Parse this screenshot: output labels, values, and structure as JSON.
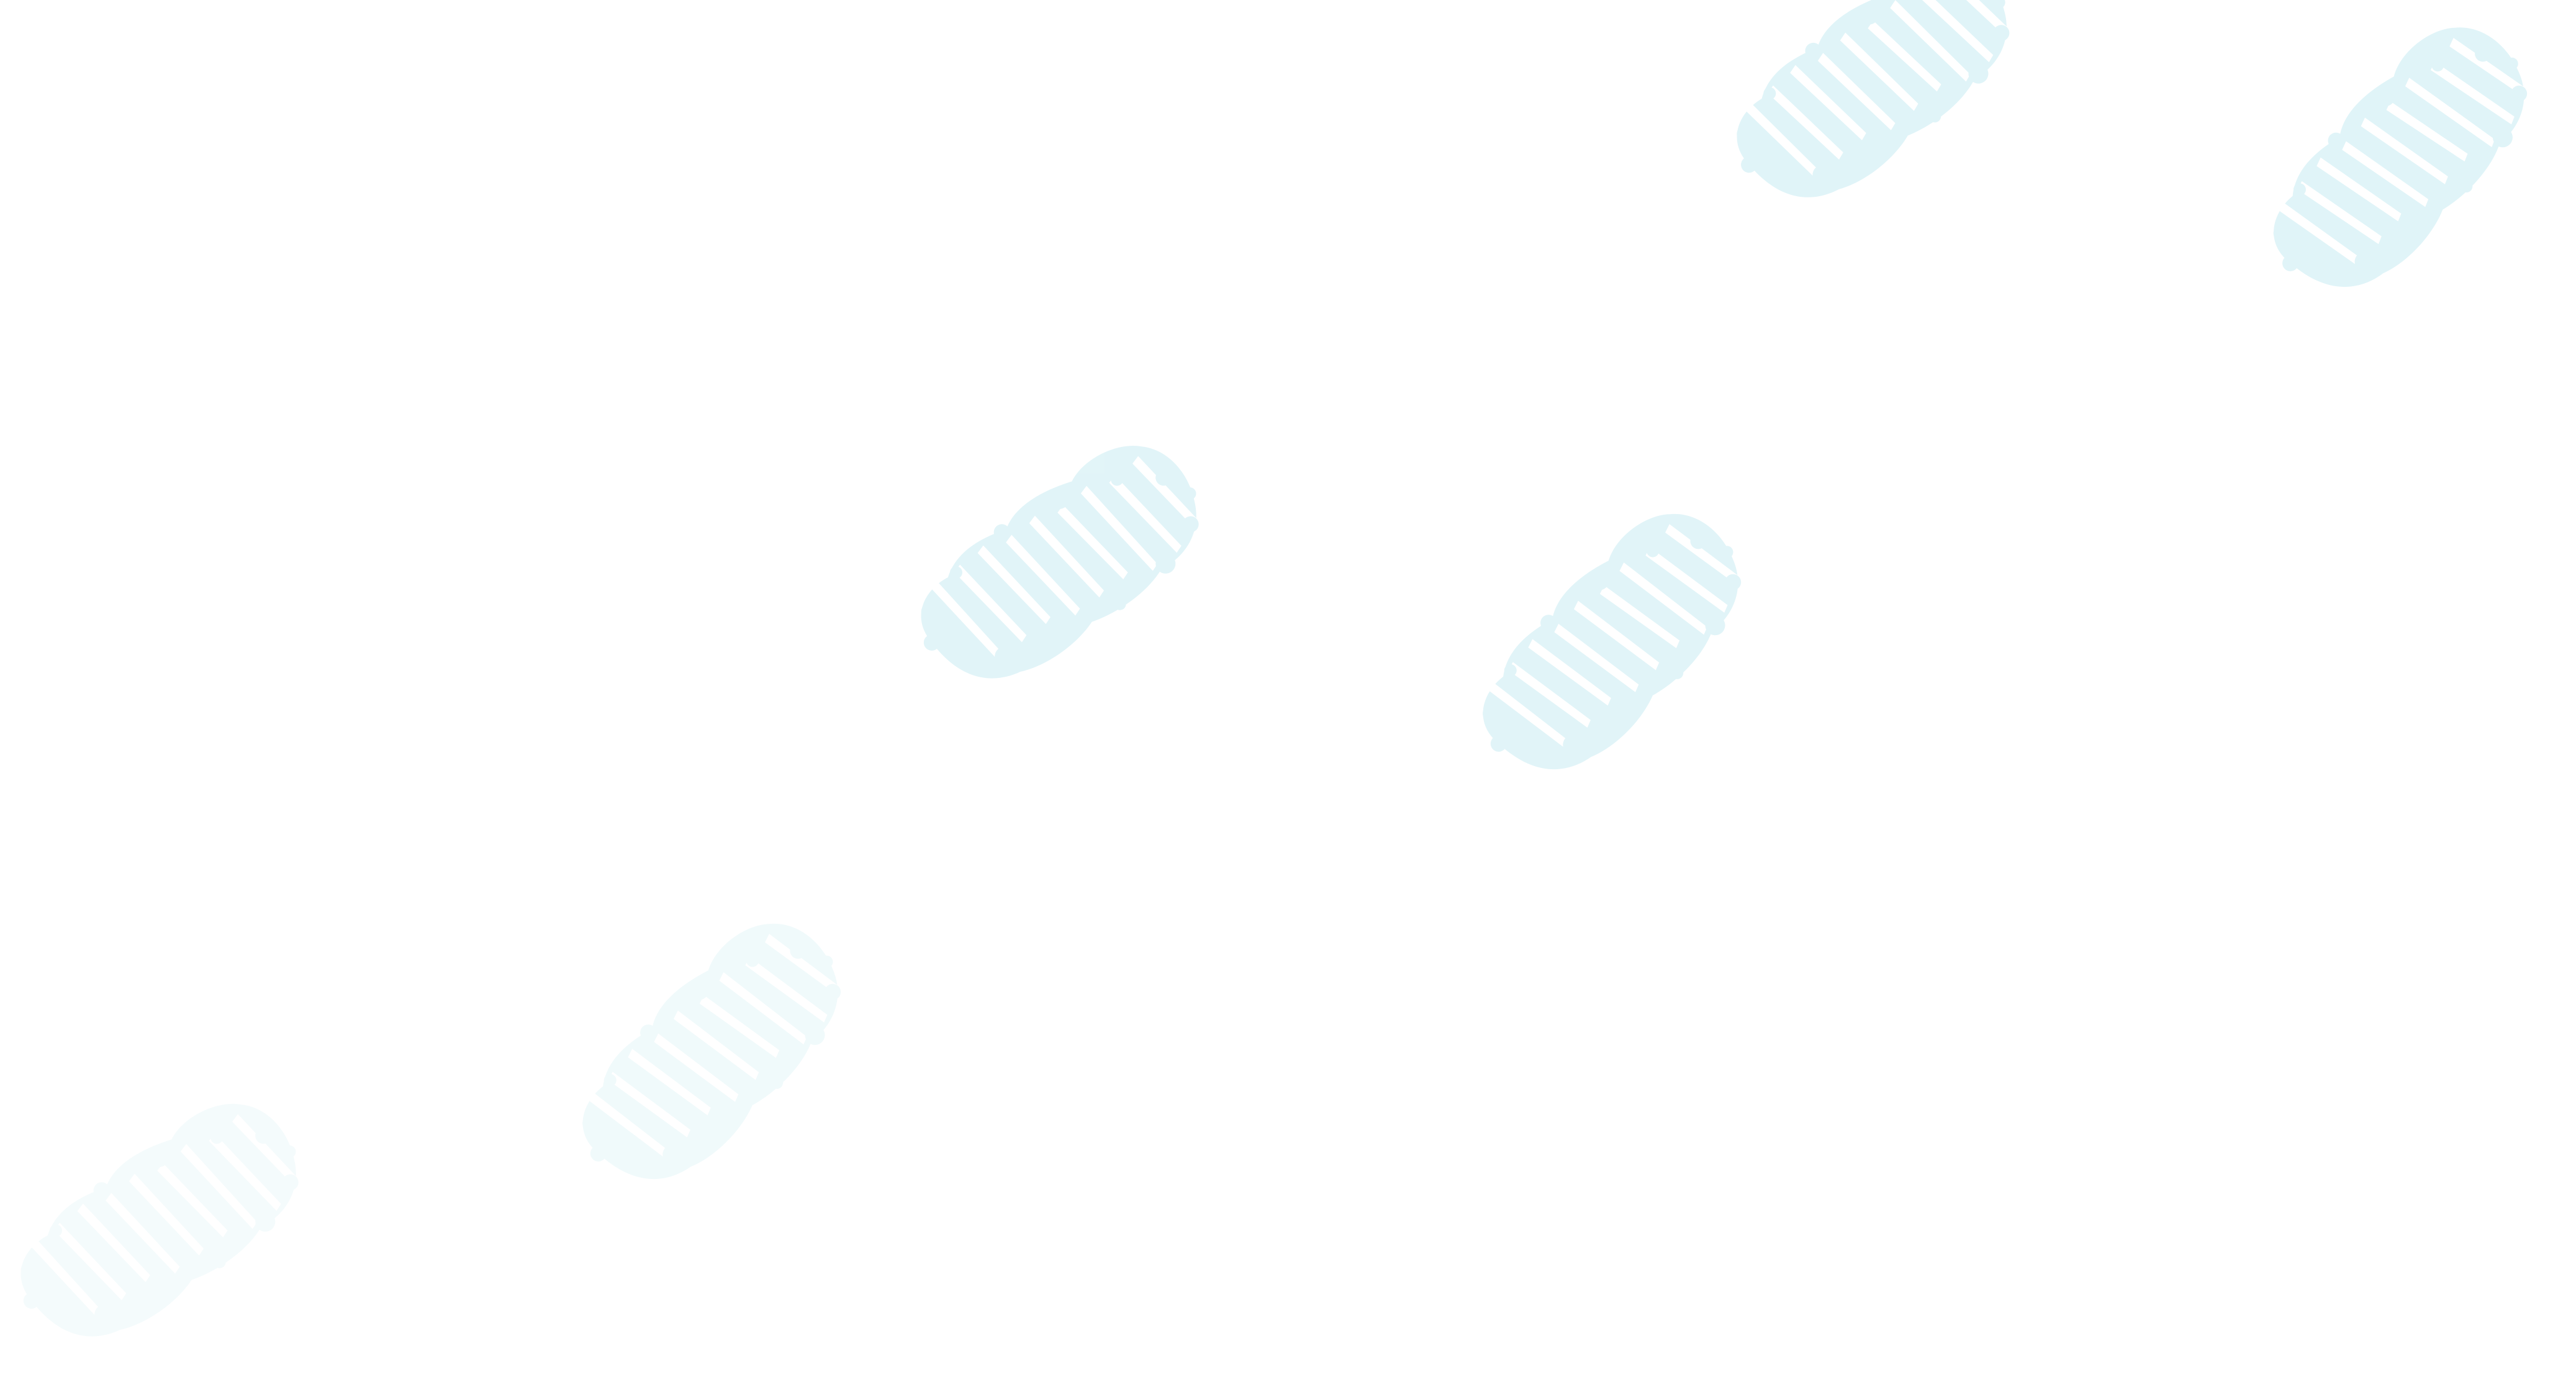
{
  "background": {
    "color": "#ffffff",
    "pattern": "footprint-pattern"
  },
  "footprints": [
    {
      "id": "footprint-1",
      "icon": "footprint-icon",
      "color": "#e0f4f8",
      "opacity": 1.0
    },
    {
      "id": "footprint-2",
      "icon": "footprint-icon",
      "color": "#e0f4f8",
      "opacity": 1.0
    },
    {
      "id": "footprint-3",
      "icon": "footprint-icon",
      "color": "#e0f4f8",
      "opacity": 0.95
    },
    {
      "id": "footprint-4",
      "icon": "footprint-icon",
      "color": "#e0f4f8",
      "opacity": 0.95
    },
    {
      "id": "footprint-5",
      "icon": "footprint-icon",
      "color": "#e0f4f8",
      "opacity": 0.45
    },
    {
      "id": "footprint-6",
      "icon": "footprint-icon",
      "color": "#e0f4f8",
      "opacity": 0.35
    }
  ]
}
